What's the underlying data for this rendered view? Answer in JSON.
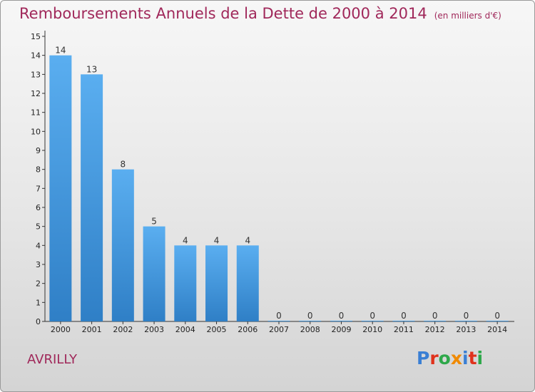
{
  "header": {
    "title": "Remboursements Annuels de la Dette de 2000 à 2014",
    "unit": "(en milliers d'€)"
  },
  "footer": {
    "commune": "AVRILLY",
    "logo_letters": [
      "P",
      "r",
      "o",
      "x",
      "i",
      "t",
      "i"
    ]
  },
  "colors": {
    "title": "#a0285a",
    "bar_light": "#5aaef0",
    "bar_dark": "#2f7fc6",
    "axis": "#333333",
    "logo": [
      "#3a7fd4",
      "#e0321c",
      "#2ea84a",
      "#f08a00",
      "#3a7fd4",
      "#e0321c",
      "#2ea84a"
    ]
  },
  "chart_data": {
    "type": "bar",
    "categories": [
      "2000",
      "2001",
      "2002",
      "2003",
      "2004",
      "2005",
      "2006",
      "2007",
      "2008",
      "2009",
      "2010",
      "2011",
      "2012",
      "2013",
      "2014"
    ],
    "values": [
      14,
      13,
      8,
      5,
      4,
      4,
      4,
      0,
      0,
      0,
      0,
      0,
      0,
      0,
      0
    ],
    "data_labels": [
      "14",
      "13",
      "8",
      "5",
      "4",
      "4",
      "4",
      "0",
      "0",
      "0",
      "0",
      "0",
      "0",
      "0",
      "0"
    ],
    "yticks": [
      0,
      1,
      2,
      3,
      4,
      5,
      6,
      7,
      8,
      9,
      10,
      11,
      12,
      13,
      14,
      15
    ],
    "ylim": [
      0,
      15
    ],
    "grid": false
  }
}
